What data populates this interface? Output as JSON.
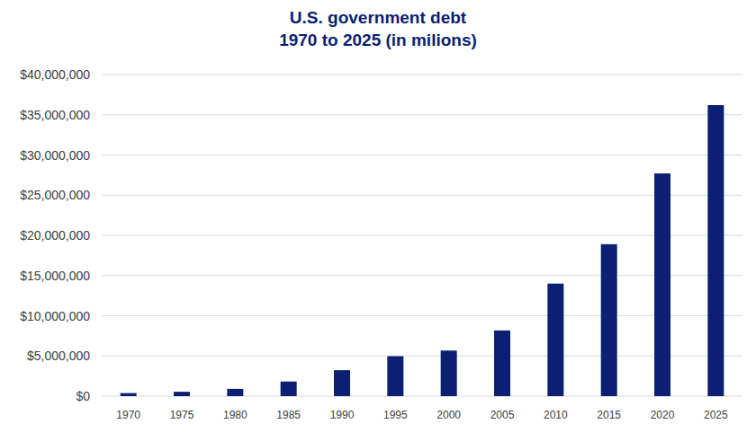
{
  "chart_data": {
    "type": "bar",
    "title": "U.S. government debt",
    "subtitle": "1970 to 2025 (in milions)",
    "categories": [
      "1970",
      "1975",
      "1980",
      "1985",
      "1990",
      "1995",
      "2000",
      "2005",
      "2010",
      "2015",
      "2020",
      "2025"
    ],
    "values": [
      380000,
      542000,
      908000,
      1820000,
      3230000,
      4970000,
      5670000,
      8170000,
      14000000,
      18900000,
      27700000,
      36200000
    ],
    "color": "#0b1f73",
    "ylim": [
      0,
      40000000
    ],
    "yticks": [
      {
        "value": 0,
        "label": "$0"
      },
      {
        "value": 5000000,
        "label": "$5,000,000"
      },
      {
        "value": 10000000,
        "label": "$10,000,000"
      },
      {
        "value": 15000000,
        "label": "$15,000,000"
      },
      {
        "value": 20000000,
        "label": "$20,000,000"
      },
      {
        "value": 25000000,
        "label": "$25,000,000"
      },
      {
        "value": 30000000,
        "label": "$30,000,000"
      },
      {
        "value": 35000000,
        "label": "$35,000,000"
      },
      {
        "value": 40000000,
        "label": "$40,000,000"
      }
    ],
    "grid": true
  }
}
